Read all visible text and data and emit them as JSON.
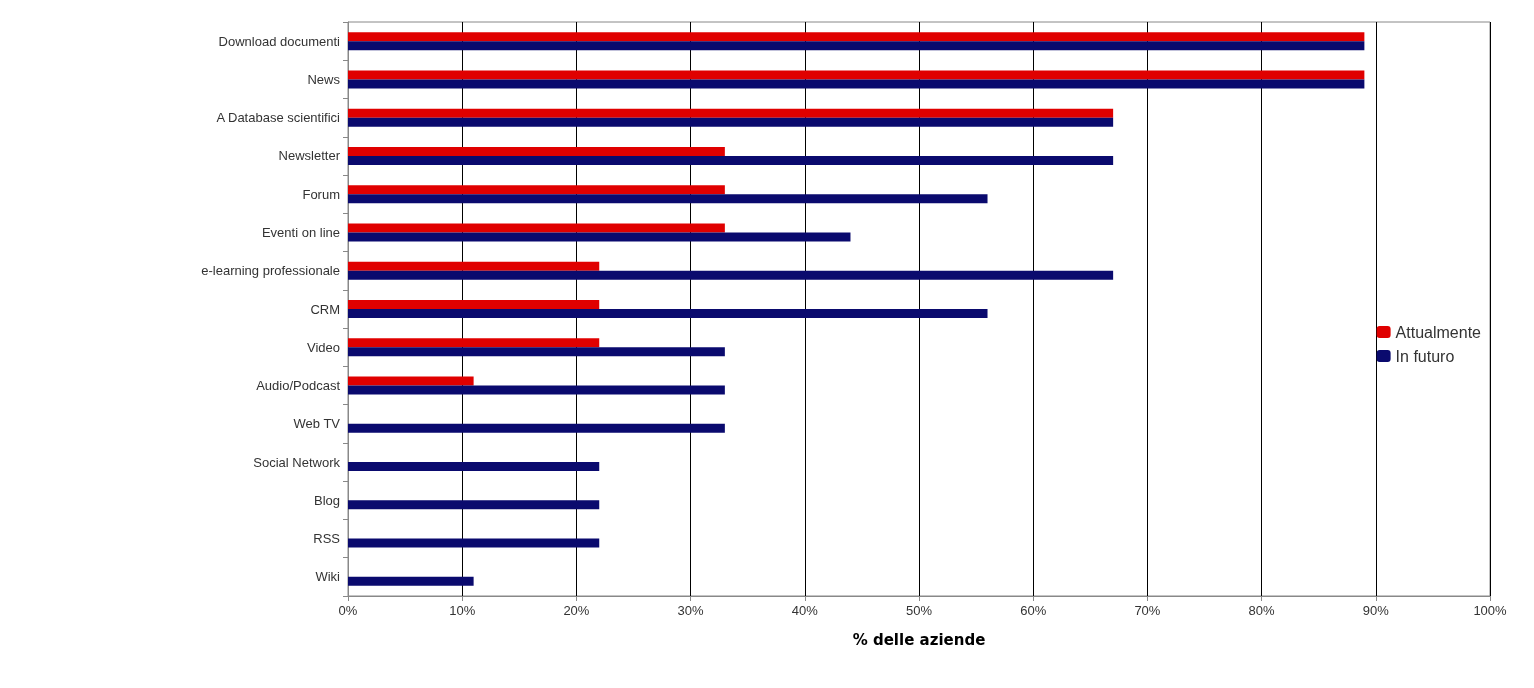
{
  "chart_data": {
    "type": "bar",
    "orientation": "horizontal",
    "xlabel": "% delle aziende",
    "categories": [
      "Download documenti",
      "News",
      "A Database scientifici",
      "Newsletter",
      "Forum",
      "Eventi on line",
      "e-learning professionale",
      "CRM",
      "Video",
      "Audio/Podcast",
      "Web TV",
      "Social Network",
      "Blog",
      "RSS",
      "Wiki"
    ],
    "series": [
      {
        "name": "Attualmente",
        "color": "#e00000",
        "values": [
          89,
          89,
          67,
          33,
          33,
          33,
          22,
          22,
          22,
          11,
          0,
          0,
          0,
          0,
          0
        ]
      },
      {
        "name": "In futuro",
        "color": "#0a0a6e",
        "values": [
          89,
          89,
          67,
          67,
          56,
          44,
          67,
          56,
          33,
          33,
          33,
          22,
          22,
          22,
          11
        ]
      }
    ],
    "xlim": [
      0,
      100
    ],
    "xticks": [
      {
        "value": 0,
        "label": "0%"
      },
      {
        "value": 10,
        "label": "10%"
      },
      {
        "value": 20,
        "label": "20%"
      },
      {
        "value": 30,
        "label": "30%"
      },
      {
        "value": 40,
        "label": "40%"
      },
      {
        "value": 50,
        "label": "50%"
      },
      {
        "value": 60,
        "label": "60%"
      },
      {
        "value": 70,
        "label": "70%"
      },
      {
        "value": 80,
        "label": "80%"
      },
      {
        "value": 90,
        "label": "90%"
      },
      {
        "value": 100,
        "label": "100%"
      }
    ],
    "grid": "x",
    "legend": "right"
  }
}
